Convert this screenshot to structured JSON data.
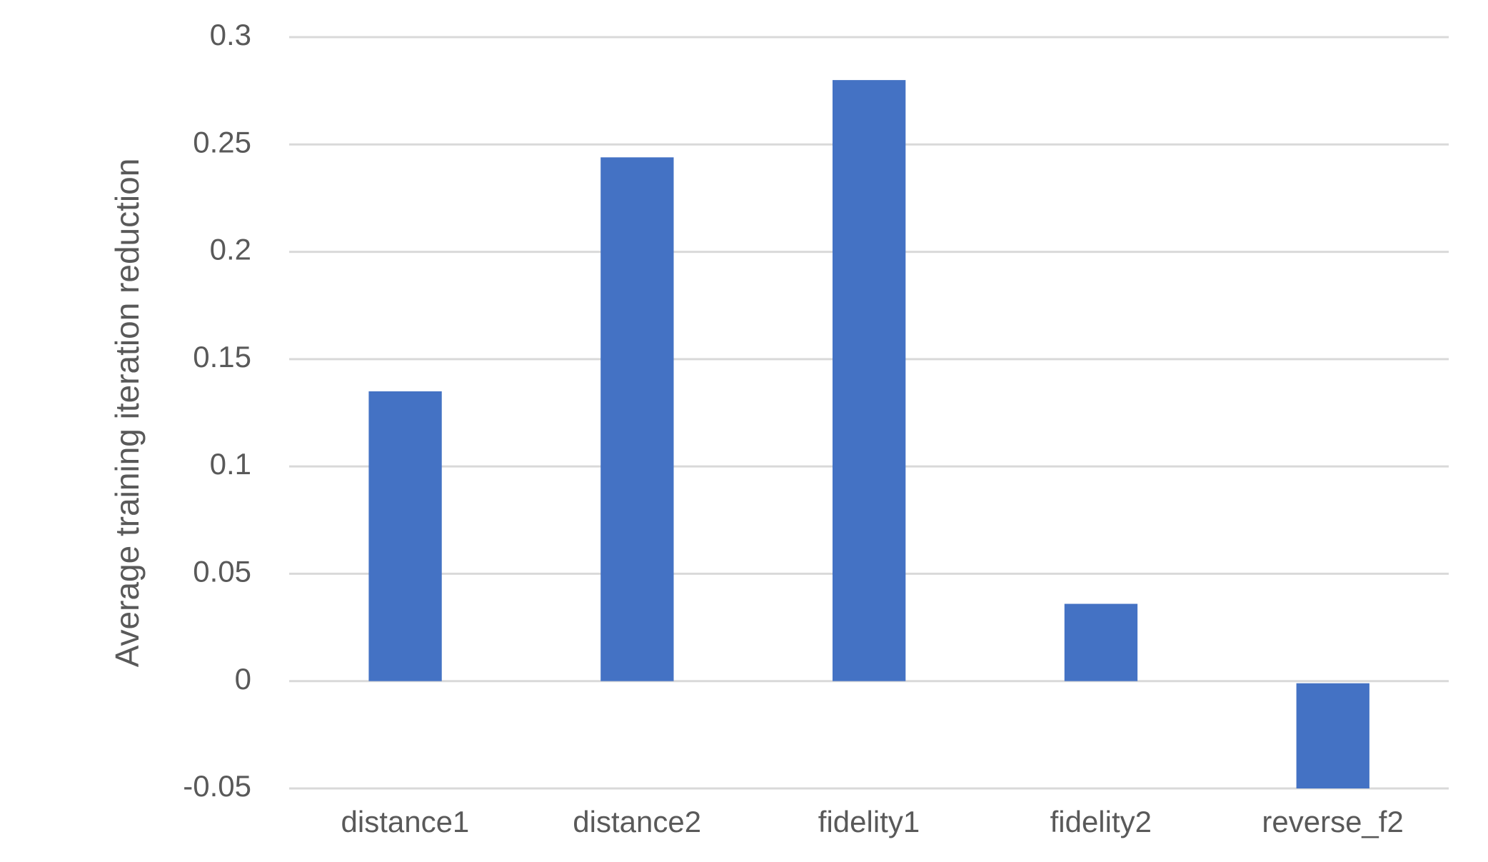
{
  "chart_data": {
    "type": "bar",
    "y_label": "Average training iteration reduction",
    "categories": [
      "distance1",
      "distance2",
      "fidelity1",
      "fidelity2",
      "reverse_f2"
    ],
    "values": [
      0.135,
      0.244,
      0.28,
      0.036,
      -0.05
    ],
    "color": "#4472c4",
    "ylim": [
      -0.05,
      0.3
    ],
    "yticks": [
      -0.05,
      0,
      0.05,
      0.1,
      0.15,
      0.2,
      0.25,
      0.3
    ],
    "grid": true
  }
}
